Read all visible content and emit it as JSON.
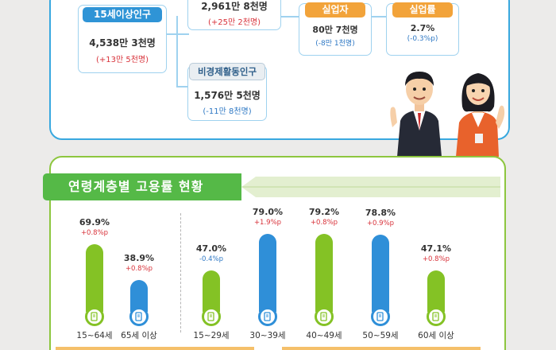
{
  "population": {
    "total": {
      "label": "15세이상인구",
      "value": "4,538만 3천명",
      "change": "(+13만 5천명)"
    },
    "econ_active": {
      "value": "2,961만 8천명",
      "change": "(+25만 2천명)"
    },
    "inactive": {
      "label": "비경제활동인구",
      "value": "1,576만 5천명",
      "change": "(-11만 8천명)"
    },
    "unemployed": {
      "label": "실업자",
      "value": "80만 7천명",
      "change": "(-8만 1천명)"
    },
    "unemp_rate": {
      "label": "실업률",
      "value": "2.7%",
      "change": "(-0.3%p)"
    }
  },
  "chart_data": {
    "type": "bar",
    "title": "연령계층별 고용률 현황",
    "categories": [
      "15~64세",
      "65세 이상",
      "15~29세",
      "30~39세",
      "40~49세",
      "50~59세",
      "60세 이상"
    ],
    "values": [
      69.9,
      38.9,
      47.0,
      79.0,
      79.2,
      78.8,
      47.1
    ],
    "value_labels": [
      "69.9%",
      "38.9%",
      "47.0%",
      "79.0%",
      "79.2%",
      "78.8%",
      "47.1%"
    ],
    "changes": [
      "+0.8%p",
      "+0.8%p",
      "-0.4%p",
      "+1.9%p",
      "+0.8%p",
      "+0.9%p",
      "+0.8%p"
    ],
    "bar_colors": [
      "#84c225",
      "#2f8fd8",
      "#84c225",
      "#2f8fd8",
      "#84c225",
      "#2f8fd8",
      "#84c225"
    ],
    "change_colors": {
      "up": "#d8323a",
      "down": "#2e78c4"
    },
    "xlabel": "",
    "ylabel": "",
    "grid": false
  }
}
